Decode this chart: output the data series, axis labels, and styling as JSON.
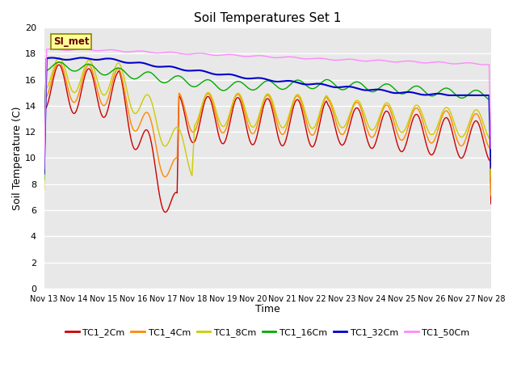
{
  "title": "Soil Temperatures Set 1",
  "xlabel": "Time",
  "ylabel": "Soil Temperature (C)",
  "ylim": [
    0,
    20
  ],
  "yticks": [
    0,
    2,
    4,
    6,
    8,
    10,
    12,
    14,
    16,
    18,
    20
  ],
  "background_color": "#e8e8e8",
  "plot_bg": "#e8e8e8",
  "annotation_text": "SI_met",
  "annotation_bg": "#ffff99",
  "annotation_border": "#888800",
  "series_colors": {
    "TC1_2Cm": "#cc0000",
    "TC1_4Cm": "#ff8800",
    "TC1_8Cm": "#cccc00",
    "TC1_16Cm": "#00aa00",
    "TC1_32Cm": "#0000cc",
    "TC1_50Cm": "#ff88ff"
  },
  "x_ticks": [
    13,
    14,
    15,
    16,
    17,
    18,
    19,
    20,
    21,
    22,
    23,
    24,
    25,
    26,
    27,
    28
  ],
  "figsize": [
    6.4,
    4.8
  ],
  "dpi": 100
}
